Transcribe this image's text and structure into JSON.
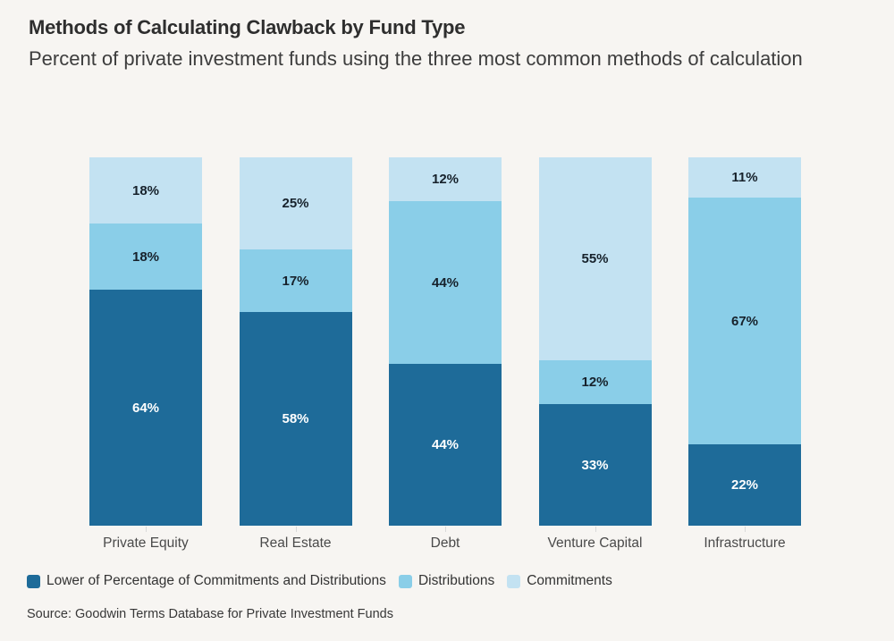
{
  "page": {
    "background_color": "#f7f5f2"
  },
  "header": {
    "title": "Methods of Calculating Clawback by Fund Type",
    "subtitle": "Percent of private investment funds using the three most common methods of calculation"
  },
  "footer": {
    "source": "Source: Goodwin Terms Database for Private Investment Funds"
  },
  "chart_data": {
    "type": "bar",
    "variant": "stacked-100-percent",
    "orientation": "vertical",
    "title": "Methods of Calculating Clawback by Fund Type",
    "subtitle": "Percent of private investment funds using the three most common methods of calculation",
    "categories": [
      "Private Equity",
      "Real Estate",
      "Debt",
      "Venture Capital",
      "Infrastructure"
    ],
    "series": [
      {
        "name": "Lower of Percentage of Commitments and Distributions",
        "color": "#1e6b99",
        "label_color": "#ffffff",
        "values": [
          64,
          58,
          44,
          33,
          22
        ]
      },
      {
        "name": "Distributions",
        "color": "#8acee8",
        "label_color": "#17222c",
        "values": [
          18,
          17,
          44,
          12,
          67
        ]
      },
      {
        "name": "Commitments",
        "color": "#c3e2f2",
        "label_color": "#17222c",
        "values": [
          18,
          25,
          12,
          55,
          11
        ]
      }
    ],
    "stack_order_top_to_bottom": [
      "Commitments",
      "Distributions",
      "Lower of Percentage of Commitments and Distributions"
    ],
    "value_suffix": "%",
    "ylim": [
      0,
      100
    ],
    "grid": false,
    "y_axis_shown": false,
    "legend_position": "bottom-left",
    "tick_color": "#d9d9d9"
  }
}
